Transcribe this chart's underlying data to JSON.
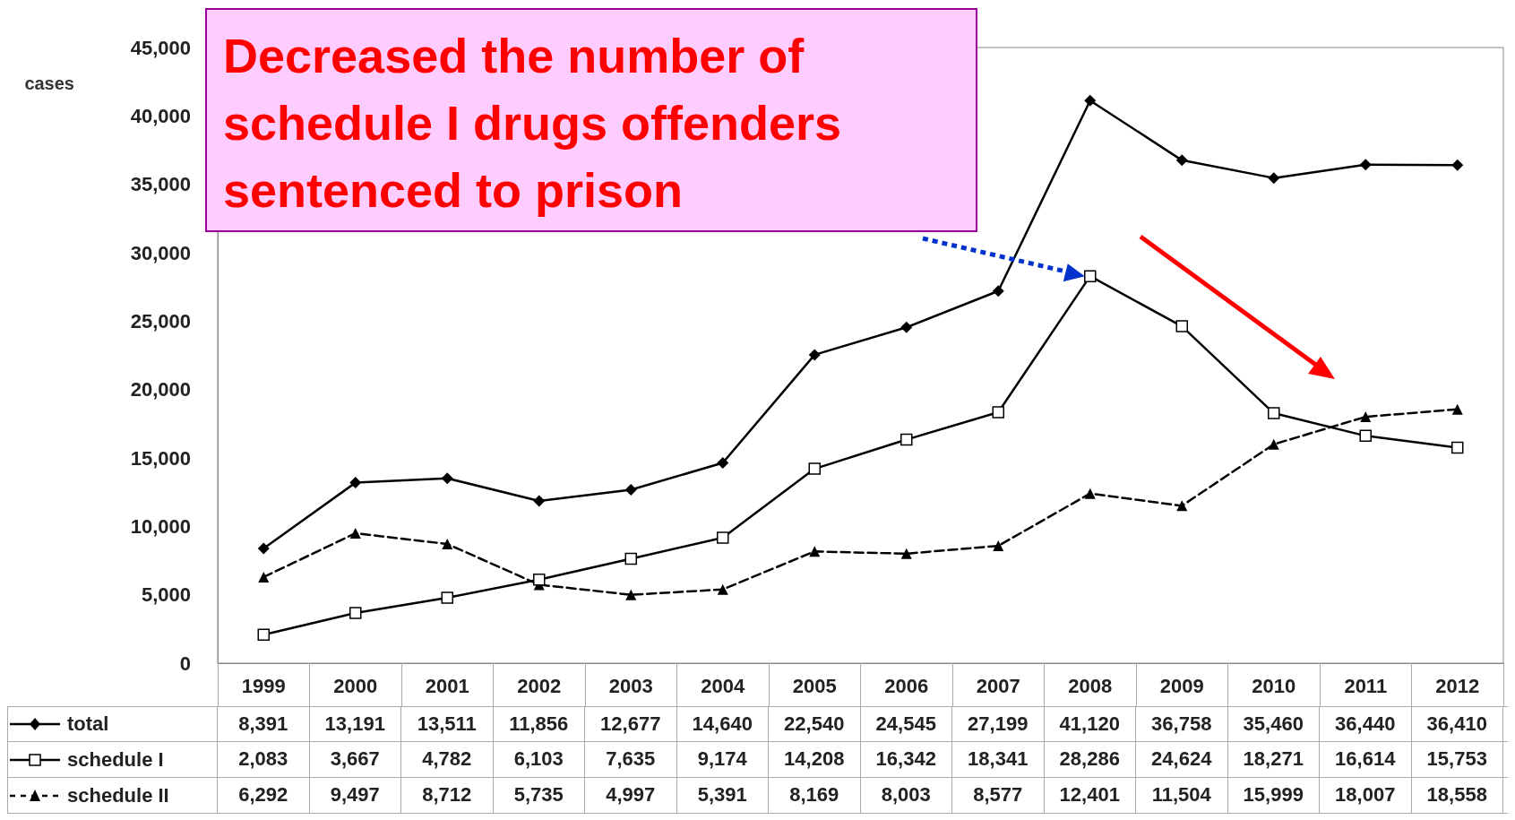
{
  "chart_data": {
    "type": "line",
    "ylabel": "cases",
    "annotations": [
      "Decreased the number of schedule I drugs offenders sentenced to prison"
    ],
    "categories": [
      "1999",
      "2000",
      "2001",
      "2002",
      "2003",
      "2004",
      "2005",
      "2006",
      "2007",
      "2008",
      "2009",
      "2010",
      "2011",
      "2012"
    ],
    "series": [
      {
        "name": "total",
        "color": "#000000",
        "marker": "diamond",
        "line_style": "solid",
        "values": [
          8391,
          13191,
          13511,
          11856,
          12677,
          14640,
          22540,
          24545,
          27199,
          41120,
          36758,
          35460,
          36440,
          36410
        ],
        "value_labels": [
          "8,391",
          "13,191",
          "13,511",
          "11,856",
          "12,677",
          "14,640",
          "22,540",
          "24,545",
          "27,199",
          "41,120",
          "36,758",
          "35,460",
          "36,440",
          "36,410"
        ]
      },
      {
        "name": "schedule I",
        "color": "#000000",
        "marker": "square",
        "line_style": "solid",
        "values": [
          2083,
          3667,
          4782,
          6103,
          7635,
          9174,
          14208,
          16342,
          18341,
          28286,
          24624,
          18271,
          16614,
          15753
        ],
        "value_labels": [
          "2,083",
          "3,667",
          "4,782",
          "6,103",
          "7,635",
          "9,174",
          "14,208",
          "16,342",
          "18,341",
          "28,286",
          "24,624",
          "18,271",
          "16,614",
          "15,753"
        ]
      },
      {
        "name": "schedule II",
        "color": "#000000",
        "marker": "triangle",
        "line_style": "dashed",
        "values": [
          6292,
          9497,
          8712,
          5735,
          4997,
          5391,
          8169,
          8003,
          8577,
          12401,
          11504,
          15999,
          18007,
          18558
        ],
        "value_labels": [
          "6,292",
          "9,497",
          "8,712",
          "5,735",
          "4,997",
          "5,391",
          "8,169",
          "8,003",
          "8,577",
          "12,401",
          "11,504",
          "15,999",
          "18,007",
          "18,558"
        ]
      }
    ],
    "ylim": [
      0,
      45000
    ],
    "yticks": [
      0,
      {
        "value": 5000,
        "label": "5,000"
      },
      {
        "value": 10000,
        "label": "10,000"
      },
      {
        "value": 15000,
        "label": "15,000"
      },
      {
        "value": 20000,
        "label": "20,000"
      },
      {
        "value": 25000,
        "label": "25,000"
      },
      {
        "value": 30000,
        "label": "30,000"
      },
      {
        "value": 35000,
        "label": "35,000"
      },
      {
        "value": 40000,
        "label": "40,000"
      },
      {
        "value": 45000,
        "label": "45,000"
      }
    ],
    "grid": false,
    "legend": "bottom"
  }
}
